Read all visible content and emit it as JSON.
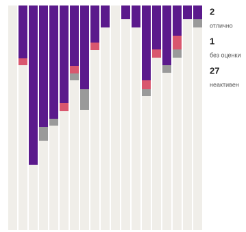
{
  "chart_data": {
    "type": "hanging-stacked-bar",
    "ylim": [
      0,
      327
    ],
    "series": [
      {
        "name": "отлично",
        "count": 2,
        "color": "#d9576e",
        "values": [
          0,
          10,
          0,
          0,
          0,
          12,
          11,
          0,
          11,
          0,
          0,
          0,
          0,
          13,
          12,
          0,
          20,
          0,
          0
        ]
      },
      {
        "name": "без оценки",
        "count": 1,
        "color": "#9a9a9a",
        "values": [
          0,
          0,
          0,
          20,
          10,
          0,
          10,
          30,
          0,
          0,
          0,
          0,
          0,
          10,
          0,
          11,
          12,
          0,
          12
        ]
      },
      {
        "name": "неактивен",
        "count": 27,
        "color": "#5b1a8c",
        "values": [
          0,
          77,
          232,
          177,
          165,
          142,
          88,
          122,
          54,
          32,
          0,
          20,
          32,
          109,
          64,
          87,
          44,
          20,
          20
        ]
      }
    ]
  }
}
